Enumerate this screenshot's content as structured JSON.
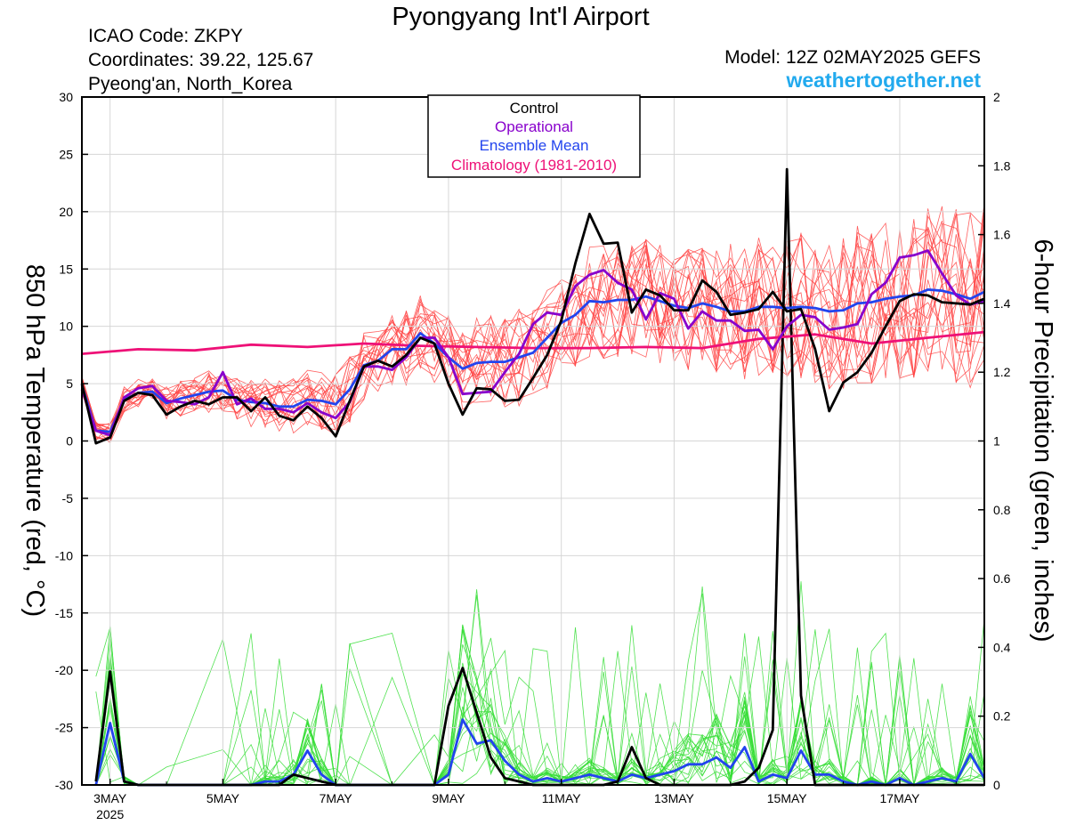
{
  "header": {
    "title": "Pyongyang Int'l Airport",
    "icao": "ICAO Code: ZKPY",
    "coordinates": "Coordinates: 39.22, 125.67",
    "location": "Pyeong'an, North_Korea",
    "model": "Model: 12Z 02MAY2025 GEFS",
    "website": "weathertogether.net"
  },
  "colors": {
    "control": "#000000",
    "operational": "#8800cc",
    "ensemble_mean": "#2244ee",
    "climatology": "#ee1177",
    "members_temp": "#ff4444",
    "members_precip": "#33dd33",
    "website": "#22aaee"
  },
  "chart_data": {
    "type": "line",
    "ylabel": "850 hPa Temperature (red, °C)",
    "y2label": "6-hour Precipitation (green, inches)",
    "ylim": [
      -30,
      30
    ],
    "y2lim": [
      0,
      2
    ],
    "yticks": [
      30,
      25,
      20,
      15,
      10,
      5,
      0,
      -5,
      -10,
      -15,
      -20,
      -25,
      -30
    ],
    "y2ticks": [
      2,
      1.8,
      1.6,
      1.4,
      1.2,
      1,
      0.8,
      0.6,
      0.4,
      0.2,
      0
    ],
    "xlim": [
      2.5,
      18.5
    ],
    "xticks": [
      {
        "day": 3,
        "label": "3MAY"
      },
      {
        "day": 5,
        "label": "5MAY"
      },
      {
        "day": 7,
        "label": "7MAY"
      },
      {
        "day": 9,
        "label": "9MAY"
      },
      {
        "day": 11,
        "label": "11MAY"
      },
      {
        "day": 13,
        "label": "13MAY"
      },
      {
        "day": 15,
        "label": "15MAY"
      },
      {
        "day": 17,
        "label": "17MAY"
      }
    ],
    "year_label": "2025",
    "legend": {
      "position": "top-center",
      "entries": [
        "Control",
        "Operational",
        "Ensemble Mean",
        "Climatology (1981-2010)"
      ]
    },
    "series": [
      {
        "name": "Control",
        "axis": "temperature",
        "x": [
          2.5,
          2.75,
          3.0,
          3.25,
          3.5,
          3.75,
          4.0,
          4.25,
          4.5,
          4.75,
          5.0,
          5.25,
          5.5,
          5.75,
          6.0,
          6.25,
          6.5,
          6.75,
          7.0,
          7.25,
          7.5,
          7.75,
          8.0,
          8.25,
          8.5,
          8.75,
          9.0,
          9.25,
          9.5,
          9.75,
          10.0,
          10.25,
          10.5,
          10.75,
          11.0,
          11.25,
          11.5,
          11.75,
          12.0,
          12.25,
          12.5,
          12.75,
          13.0,
          13.25,
          13.5,
          13.75,
          14.0,
          14.25,
          14.5,
          14.75,
          15.0,
          15.25,
          15.5,
          15.75,
          16.0,
          16.25,
          16.5,
          16.75,
          17.0,
          17.25,
          17.5,
          17.75,
          18.0,
          18.25,
          18.5
        ],
        "values": [
          5.0,
          -0.2,
          0.3,
          3.5,
          4.2,
          4.0,
          2.3,
          3.0,
          3.5,
          3.2,
          3.8,
          3.8,
          2.6,
          3.8,
          2.2,
          1.8,
          3.0,
          2.0,
          0.4,
          3.5,
          6.5,
          7.0,
          6.5,
          7.5,
          9.0,
          8.5,
          5.0,
          2.3,
          4.6,
          4.5,
          3.5,
          3.6,
          5.5,
          7.5,
          10.5,
          15.5,
          19.8,
          17.2,
          17.3,
          11.2,
          13.2,
          12.7,
          11.4,
          11.4,
          14.0,
          13.0,
          11.0,
          11.2,
          11.5,
          13.0,
          11.3,
          11.5,
          8.0,
          2.6,
          5.1,
          6.0,
          7.7,
          10.0,
          12.2,
          12.8,
          12.7,
          12.1,
          12.0,
          11.9,
          12.4
        ]
      },
      {
        "name": "Operational",
        "axis": "temperature",
        "x": [
          2.5,
          2.75,
          3.0,
          3.25,
          3.5,
          3.75,
          4.0,
          4.25,
          4.5,
          4.75,
          5.0,
          5.25,
          5.5,
          5.75,
          6.0,
          6.25,
          6.5,
          6.75,
          7.0,
          7.25,
          7.5,
          7.75,
          8.0,
          8.25,
          8.5,
          8.75,
          9.0,
          9.25,
          9.5,
          9.75,
          10.0,
          10.25,
          10.5,
          10.75,
          11.0,
          11.25,
          11.5,
          11.75,
          12.0,
          12.25,
          12.5,
          12.75,
          13.0,
          13.25,
          13.5,
          13.75,
          14.0,
          14.25,
          14.5,
          14.75,
          15.0,
          15.25,
          15.5,
          15.75,
          16.0,
          16.25,
          16.5,
          16.75,
          17.0,
          17.25,
          17.5,
          17.75,
          18.0,
          18.25,
          18.5
        ],
        "values": [
          4.5,
          0.9,
          0.5,
          3.8,
          4.6,
          4.8,
          3.5,
          3.4,
          3.2,
          3.8,
          6.0,
          3.2,
          3.7,
          2.8,
          2.8,
          2.5,
          3.3,
          2.5,
          2.0,
          3.4,
          6.5,
          6.5,
          6.2,
          7.3,
          9.0,
          9.0,
          7.3,
          4.1,
          4.2,
          4.3,
          6.0,
          7.6,
          10.2,
          11.2,
          11.0,
          13.5,
          14.5,
          14.9,
          13.8,
          13.2,
          10.6,
          12.9,
          12.4,
          9.8,
          11.3,
          10.5,
          10.5,
          9.6,
          9.7,
          8.0,
          10.0,
          11.0,
          10.8,
          9.7,
          9.9,
          10.2,
          12.8,
          13.8,
          16.0,
          16.2,
          16.6,
          14.6,
          12.7,
          11.9,
          12.2
        ]
      },
      {
        "name": "Ensemble Mean",
        "axis": "temperature",
        "x": [
          2.5,
          2.75,
          3.0,
          3.25,
          3.5,
          3.75,
          4.0,
          4.25,
          4.5,
          4.75,
          5.0,
          5.25,
          5.5,
          5.75,
          6.0,
          6.25,
          6.5,
          6.75,
          7.0,
          7.25,
          7.5,
          7.75,
          8.0,
          8.25,
          8.5,
          8.75,
          9.0,
          9.25,
          9.5,
          9.75,
          10.0,
          10.25,
          10.5,
          10.75,
          11.0,
          11.25,
          11.5,
          11.75,
          12.0,
          12.25,
          12.5,
          12.75,
          13.0,
          13.25,
          13.5,
          13.75,
          14.0,
          14.25,
          14.5,
          14.75,
          15.0,
          15.25,
          15.5,
          15.75,
          16.0,
          16.25,
          16.5,
          16.75,
          17.0,
          17.25,
          17.5,
          17.75,
          18.0,
          18.25,
          18.5
        ],
        "values": [
          4.9,
          0.9,
          0.8,
          3.6,
          4.2,
          4.3,
          3.3,
          3.7,
          4.0,
          4.3,
          4.4,
          3.6,
          3.4,
          3.3,
          3.0,
          3.0,
          3.6,
          3.5,
          3.2,
          4.5,
          6.6,
          7.0,
          8.0,
          8.0,
          9.4,
          8.5,
          7.3,
          6.3,
          6.8,
          6.9,
          6.9,
          7.3,
          7.7,
          9.0,
          10.3,
          11.0,
          12.2,
          12.1,
          12.3,
          12.3,
          12.6,
          12.2,
          11.8,
          11.6,
          12.0,
          11.7,
          11.3,
          11.3,
          11.7,
          11.7,
          11.6,
          11.7,
          11.6,
          11.3,
          11.4,
          12.0,
          12.1,
          12.4,
          12.6,
          12.7,
          13.2,
          13.1,
          12.8,
          12.4,
          13.0
        ]
      },
      {
        "name": "Climatology (1981-2010)",
        "axis": "temperature",
        "x": [
          2.5,
          3.5,
          4.5,
          5.5,
          6.5,
          7.5,
          8.5,
          9.5,
          10.5,
          11.5,
          12.5,
          13.5,
          14.5,
          15.5,
          16.5,
          17.5,
          18.5
        ],
        "values": [
          7.6,
          8.0,
          7.9,
          8.4,
          8.2,
          8.5,
          8.3,
          8.2,
          8.1,
          8.1,
          8.2,
          8.1,
          8.9,
          9.3,
          8.5,
          9.0,
          9.5
        ]
      },
      {
        "name": "Control Precipitation",
        "axis": "precipitation",
        "x": [
          2.75,
          3.0,
          3.25,
          3.5,
          4.0,
          5.0,
          5.75,
          6.0,
          6.25,
          6.5,
          6.75,
          7.0,
          8.0,
          8.75,
          9.0,
          9.25,
          9.5,
          9.75,
          10.0,
          10.25,
          10.5,
          11.0,
          11.25,
          11.5,
          11.75,
          12.0,
          12.25,
          12.5,
          12.75,
          13.0,
          14.0,
          14.25,
          14.5,
          14.75,
          15.0,
          15.25,
          15.5,
          15.75,
          16.0,
          17.0,
          18.5
        ],
        "values": [
          0.01,
          0.33,
          0.01,
          0.0,
          0.0,
          0.0,
          0.0,
          0.0,
          0.03,
          0.02,
          0.01,
          0.0,
          0.0,
          0.0,
          0.23,
          0.34,
          0.21,
          0.08,
          0.02,
          0.01,
          0.0,
          0.0,
          0.0,
          0.0,
          0.0,
          0.01,
          0.11,
          0.02,
          0.0,
          0.0,
          0.0,
          0.01,
          0.05,
          0.16,
          1.79,
          0.26,
          0.0,
          0.0,
          0.0,
          0.0,
          0.0
        ]
      },
      {
        "name": "Ensemble Mean Precipitation",
        "axis": "precipitation",
        "x": [
          2.75,
          3.0,
          3.25,
          3.5,
          4.0,
          5.0,
          5.5,
          5.75,
          6.0,
          6.25,
          6.5,
          6.75,
          7.0,
          7.25,
          8.0,
          8.75,
          9.0,
          9.25,
          9.5,
          9.75,
          10.0,
          10.25,
          10.5,
          10.75,
          11.0,
          11.25,
          11.5,
          11.75,
          12.0,
          12.25,
          12.5,
          12.75,
          13.0,
          13.25,
          13.5,
          13.75,
          14.0,
          14.25,
          14.5,
          14.75,
          15.0,
          15.25,
          15.5,
          15.75,
          16.0,
          16.25,
          16.5,
          16.75,
          17.0,
          17.25,
          17.5,
          17.75,
          18.0,
          18.25,
          18.5
        ],
        "values": [
          0.0,
          0.18,
          0.01,
          0.0,
          0.0,
          0.0,
          0.0,
          0.01,
          0.01,
          0.03,
          0.1,
          0.03,
          0.0,
          0.0,
          0.0,
          0.0,
          0.03,
          0.19,
          0.12,
          0.13,
          0.07,
          0.03,
          0.01,
          0.02,
          0.01,
          0.02,
          0.03,
          0.02,
          0.01,
          0.03,
          0.02,
          0.03,
          0.04,
          0.06,
          0.06,
          0.08,
          0.05,
          0.11,
          0.01,
          0.03,
          0.02,
          0.1,
          0.03,
          0.03,
          0.01,
          0.0,
          0.01,
          0.0,
          0.02,
          0.0,
          0.01,
          0.02,
          0.01,
          0.09,
          0.02
        ]
      }
    ]
  }
}
